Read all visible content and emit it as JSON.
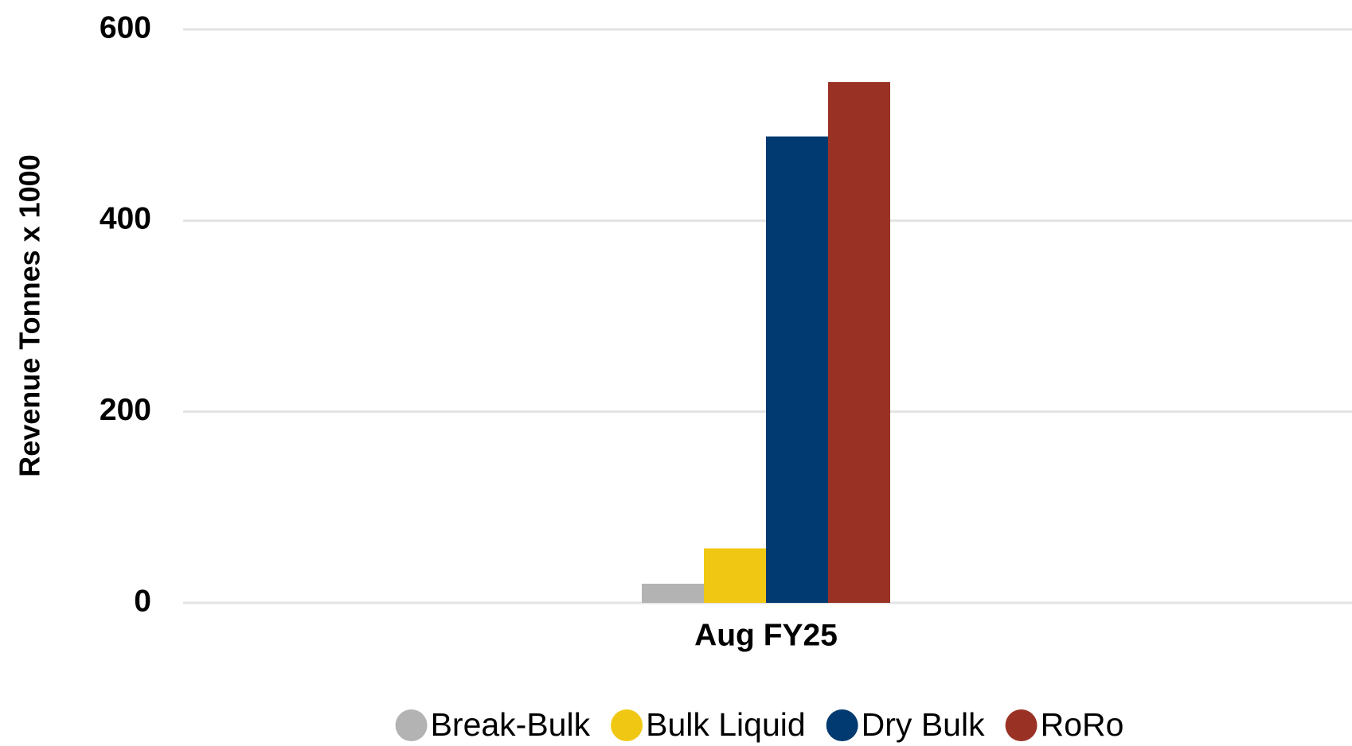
{
  "chart_data": {
    "type": "bar",
    "ylabel": "Revenue Tonnes x 1000",
    "categories": [
      "Aug FY25"
    ],
    "series": [
      {
        "name": "Break-Bulk",
        "color": "#b3b3b3",
        "values": [
          20
        ]
      },
      {
        "name": "Bulk Liquid",
        "color": "#f0c814",
        "values": [
          57
        ]
      },
      {
        "name": "Dry Bulk",
        "color": "#003a70",
        "values": [
          488
        ]
      },
      {
        "name": "RoRo",
        "color": "#993225",
        "values": [
          545
        ]
      }
    ],
    "ylim": [
      0,
      600
    ],
    "yticks": [
      0,
      200,
      400,
      600
    ],
    "grid": true,
    "legend": "bottom"
  }
}
